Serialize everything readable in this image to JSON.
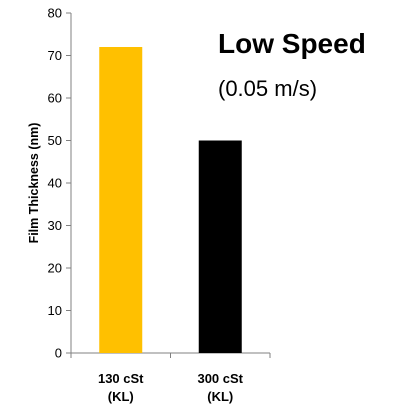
{
  "chart_data": {
    "type": "bar",
    "title": "Low Speed",
    "subtitle": "(0.05 m/s)",
    "ylabel": "Film Thickness (nm)",
    "xlabel": "",
    "ylim": [
      0,
      80
    ],
    "yticks": [
      0,
      10,
      20,
      30,
      40,
      50,
      60,
      70,
      80
    ],
    "categories": [
      [
        "130 cSt",
        "(KL)"
      ],
      [
        "300 cSt",
        "(KL)"
      ]
    ],
    "values": [
      72,
      50
    ],
    "colors": [
      "#FFC000",
      "#000000"
    ],
    "grid": false,
    "legend": "none"
  }
}
